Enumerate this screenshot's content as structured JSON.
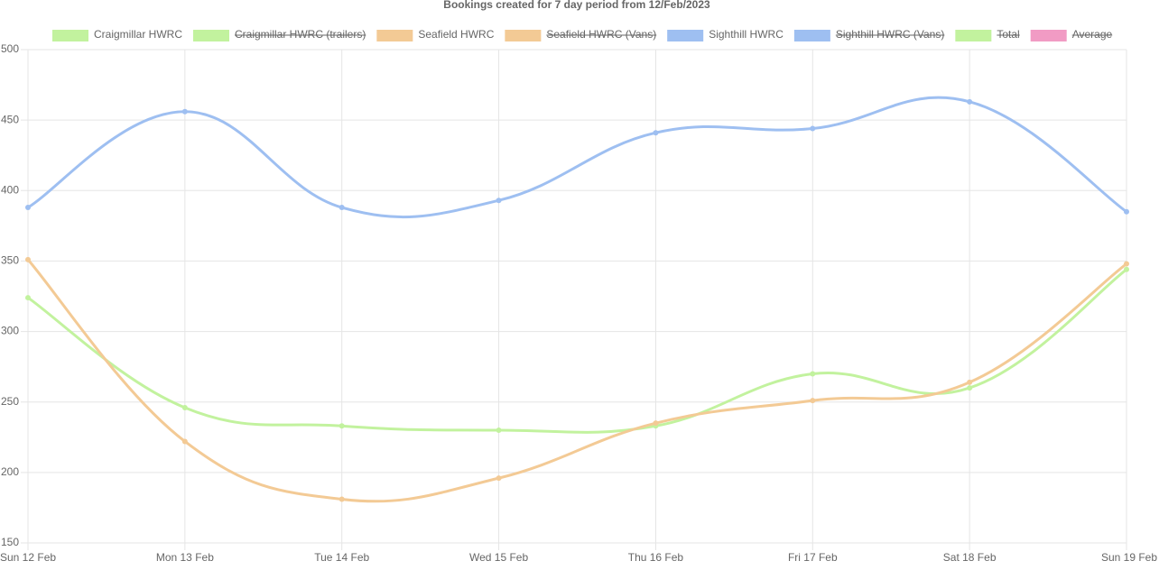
{
  "chart_data": {
    "type": "line",
    "title": "Bookings created for 7 day period from 12/Feb/2023",
    "categories": [
      "Sun 12 Feb",
      "Mon 13 Feb",
      "Tue 14 Feb",
      "Wed 15 Feb",
      "Thu 16 Feb",
      "Fri 17 Feb",
      "Sat 18 Feb",
      "Sun 19 Feb"
    ],
    "series": [
      {
        "name": "Craigmillar HWRC",
        "color": "#c2f29e",
        "values": [
          324,
          246,
          233,
          230,
          233,
          270,
          260,
          344
        ]
      },
      {
        "name": "Craigmillar HWRC (trailers)",
        "color": "#c2f29e",
        "hidden": true
      },
      {
        "name": "Seafield HWRC",
        "color": "#f3ca95",
        "values": [
          351,
          222,
          181,
          196,
          235,
          251,
          264,
          348
        ]
      },
      {
        "name": "Seafield HWRC (Vans)",
        "color": "#f3ca95",
        "hidden": true
      },
      {
        "name": "Sighthill HWRC",
        "color": "#9ebff1",
        "values": [
          388,
          456,
          388,
          393,
          441,
          444,
          463,
          385
        ]
      },
      {
        "name": "Sighthill HWRC (Vans)",
        "color": "#9ebff1",
        "hidden": true
      },
      {
        "name": "Total",
        "color": "#c2f29e",
        "hidden": true
      },
      {
        "name": "Average",
        "color": "#f19bc4",
        "hidden": true
      }
    ],
    "ylim": [
      150,
      500
    ],
    "yticks": [
      150,
      200,
      250,
      300,
      350,
      400,
      450,
      500
    ],
    "grid": true
  }
}
